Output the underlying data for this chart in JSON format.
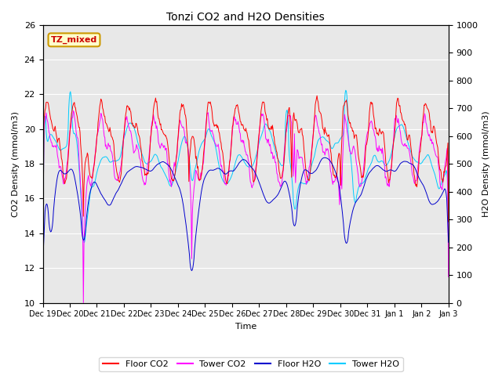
{
  "title": "Tonzi CO2 and H2O Densities",
  "xlabel": "Time",
  "ylabel_left": "CO2 Density (mmol/m3)",
  "ylabel_right": "H2O Density (mmol/m3)",
  "ylim_left": [
    10,
    26
  ],
  "ylim_right": [
    0,
    1000
  ],
  "yticks_left": [
    10,
    12,
    14,
    16,
    18,
    20,
    22,
    24,
    26
  ],
  "yticks_right": [
    0,
    100,
    200,
    300,
    400,
    500,
    600,
    700,
    800,
    900,
    1000
  ],
  "colors": {
    "floor_co2": "#ff0000",
    "tower_co2": "#ff00ff",
    "floor_h2o": "#0000cd",
    "tower_h2o": "#00ccff"
  },
  "annotation_text": "TZ_mixed",
  "annotation_color": "#cc0000",
  "annotation_bg": "#ffffcc",
  "annotation_border": "#cc9900",
  "background_color": "#e8e8e8",
  "legend_entries": [
    "Floor CO2",
    "Tower CO2",
    "Floor H2O",
    "Tower H2O"
  ],
  "xtick_labels": [
    "Dec 19",
    "Dec 20",
    "Dec 21",
    "Dec 22",
    "Dec 23",
    "Dec 24",
    "Dec 25",
    "Dec 26",
    "Dec 27",
    "Dec 28",
    "Dec 29",
    "Dec 30",
    "Dec 31",
    "Jan 1",
    "Jan 2",
    "Jan 3"
  ],
  "figsize": [
    6.4,
    4.8
  ],
  "dpi": 100
}
